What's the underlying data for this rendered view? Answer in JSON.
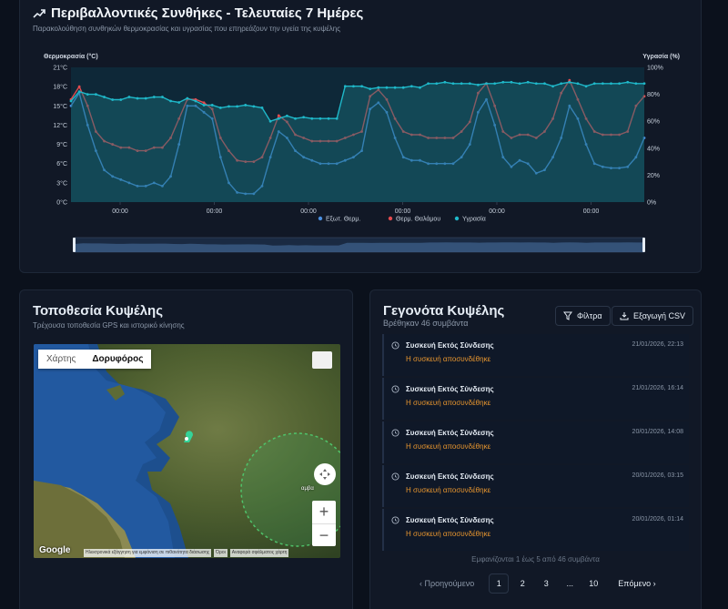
{
  "env": {
    "title": "Περιβαλλοντικές Συνθήκες - Τελευταίες 7 Ημέρες",
    "subtitle": "Παρακολούθηση συνθηκών θερμοκρασίας και υγρασίας που επηρεάζουν την υγεία της κυψέλης",
    "icon": "trend-up-icon"
  },
  "chart_data": {
    "type": "line",
    "left_axis_label": "Θερμοκρασία (°C)",
    "right_axis_label": "Υγρασία (%)",
    "y_left_ticks": [
      "21°C",
      "18°C",
      "15°C",
      "12°C",
      "9°C",
      "6°C",
      "3°C",
      "0°C"
    ],
    "y_right_ticks": [
      "100%",
      "80%",
      "60%",
      "40%",
      "20%",
      "0%"
    ],
    "ylim_left": [
      0,
      21
    ],
    "ylim_right": [
      0,
      100
    ],
    "x_tick_labels": [
      "00:00",
      "00:00",
      "00:00",
      "00:00",
      "00:00",
      "00:00"
    ],
    "grid": false,
    "legend_position": "bottom",
    "series": [
      {
        "name": "Εξωτ. Θερμ.",
        "axis": "left",
        "color": "#4a8fe0",
        "values": [
          15,
          17,
          12,
          8,
          5,
          4,
          3.5,
          3,
          2.5,
          2.5,
          3,
          2.5,
          4,
          9,
          15,
          15,
          14,
          13,
          7,
          3,
          1.5,
          1.3,
          1.3,
          2.5,
          7,
          11,
          10,
          8,
          7,
          6.5,
          6,
          6,
          6,
          6.5,
          7,
          8,
          14.5,
          15.5,
          14,
          10,
          7,
          6.5,
          6.5,
          6,
          6,
          6,
          6,
          7,
          9,
          14,
          16,
          12,
          7,
          5.5,
          6.5,
          6,
          4.5,
          5,
          7,
          10,
          15,
          13,
          9,
          6,
          5.5,
          5.3,
          5.3,
          5.5,
          7,
          10
        ]
      },
      {
        "name": "Θερμ. Θαλάμου",
        "axis": "left",
        "color": "#e24b4f",
        "values": [
          16,
          18,
          15,
          11,
          9.5,
          9,
          8.5,
          8.5,
          8,
          8,
          8.5,
          8.5,
          10,
          13,
          16,
          16,
          15.5,
          14.5,
          10,
          8,
          6.5,
          6.3,
          6.3,
          7,
          10,
          13.5,
          12.5,
          10.5,
          10,
          9.5,
          9.5,
          9.5,
          9.5,
          10,
          10.5,
          11,
          16.5,
          17.5,
          16,
          13,
          11,
          10.5,
          10.5,
          10,
          10,
          10,
          10,
          11,
          12.5,
          17,
          18.5,
          15,
          11,
          10,
          10.5,
          10.5,
          10,
          11,
          13,
          17,
          19,
          16,
          13,
          11,
          10.5,
          10.5,
          10.5,
          11,
          15,
          16.5
        ]
      },
      {
        "name": "Υγρασία",
        "axis": "right",
        "color": "#1fb8c9",
        "values": [
          75,
          82,
          80,
          80,
          78,
          76,
          76,
          78,
          77,
          77,
          78,
          78,
          75,
          74,
          77,
          75,
          72,
          72,
          70,
          71,
          71,
          72,
          71,
          70,
          60,
          62,
          64,
          62,
          63,
          62,
          62,
          62,
          62,
          86,
          86,
          86,
          84,
          85,
          85,
          85,
          85,
          86,
          85,
          88,
          88,
          89,
          88,
          88,
          88,
          87,
          88,
          88,
          89,
          89,
          88,
          89,
          88,
          88,
          86,
          88,
          89,
          88,
          86,
          88,
          88,
          88,
          88,
          89,
          88,
          88
        ]
      }
    ]
  },
  "location": {
    "title": "Τοποθεσία Κυψέλης",
    "subtitle": "Τρέχουσα τοποθεσία GPS και ιστορικό κίνησης",
    "map_tab_map": "Χάρτης",
    "map_tab_satellite": "Δορυφόρος",
    "google": "Google",
    "attribution": [
      "Ηλεκτρονικά εξάγγηση για εμφάνιση σε πιθανότητα διάσωσης",
      "Όροι",
      "Αναφορά σφάλματος χάρτη"
    ],
    "place_label": "αμβα",
    "zoom_in": "+",
    "zoom_out": "−"
  },
  "events": {
    "title": "Γεγονότα Κυψέλης",
    "count_text": "Βρέθηκαν 46 συμβάντα",
    "filter_label": "Φίλτρα",
    "export_label": "Εξαγωγή CSV",
    "items": [
      {
        "name": "Συσκευή Εκτός Σύνδεσης",
        "desc": "Η συσκευή αποσυνδέθηκε",
        "time": "21/01/2026, 22:13"
      },
      {
        "name": "Συσκευή Εκτός Σύνδεσης",
        "desc": "Η συσκευή αποσυνδέθηκε",
        "time": "21/01/2026, 16:14"
      },
      {
        "name": "Συσκευή Εκτός Σύνδεσης",
        "desc": "Η συσκευή αποσυνδέθηκε",
        "time": "20/01/2026, 14:08"
      },
      {
        "name": "Συσκευή Εκτός Σύνδεσης",
        "desc": "Η συσκευή αποσυνδέθηκε",
        "time": "20/01/2026, 03:15"
      },
      {
        "name": "Συσκευή Εκτός Σύνδεσης",
        "desc": "Η συσκευή αποσυνδέθηκε",
        "time": "20/01/2026, 01:14"
      }
    ],
    "showing_text": "Εμφανίζονται 1 έως 5 από 46 συμβάντα",
    "pagination": {
      "prev": "Προηγούμενο",
      "pages": [
        "1",
        "2",
        "3",
        "...",
        "10"
      ],
      "current": "1",
      "next": "Επόμενο"
    }
  },
  "colors": {
    "bg": "#0b111c",
    "panel": "#111826",
    "accent_orange": "#e8962f",
    "temp_ext": "#4a8fe0",
    "temp_chamber": "#e24b4f",
    "humidity": "#1fb8c9"
  }
}
